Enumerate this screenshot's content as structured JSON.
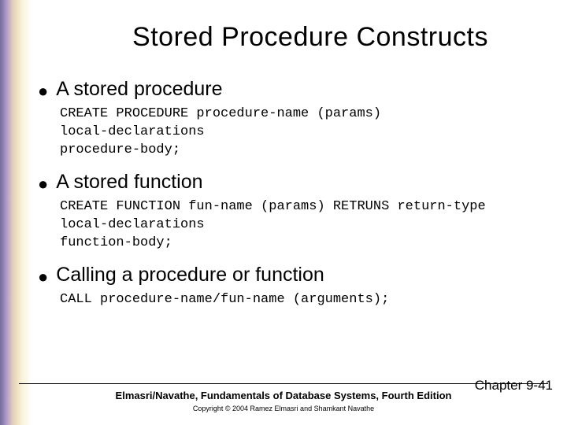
{
  "colors": {
    "text": "#000000",
    "background": "#ffffff",
    "gradient_stops": [
      "#3b2e6e",
      "#5a4a8f",
      "#8b6fb0",
      "#d4b896",
      "#e8d6a8",
      "#f5edc8",
      "#ffffff"
    ]
  },
  "title": {
    "text": "Stored Procedure Constructs",
    "fontsize": 34
  },
  "bullets": [
    {
      "heading": "A stored procedure",
      "code": "CREATE PROCEDURE procedure-name (params)\nlocal-declarations\nprocedure-body;"
    },
    {
      "heading": "A stored function",
      "code": "CREATE FUNCTION fun-name (params) RETRUNS return-type\nlocal-declarations\nfunction-body;"
    },
    {
      "heading": "Calling a procedure or function",
      "code": "CALL procedure-name/fun-name (arguments);"
    }
  ],
  "footer": {
    "citation": "Elmasri/Navathe, Fundamentals of Database Systems, Fourth Edition",
    "chapter": "Chapter 9-41",
    "copyright": "Copyright © 2004 Ramez Elmasri and Shamkant Navathe"
  },
  "typography": {
    "heading_fontsize": 25,
    "code_fontsize": 17,
    "code_family": "Courier New",
    "footer_citation_fontsize": 13,
    "footer_chapter_fontsize": 17,
    "footer_copyright_fontsize": 9
  }
}
